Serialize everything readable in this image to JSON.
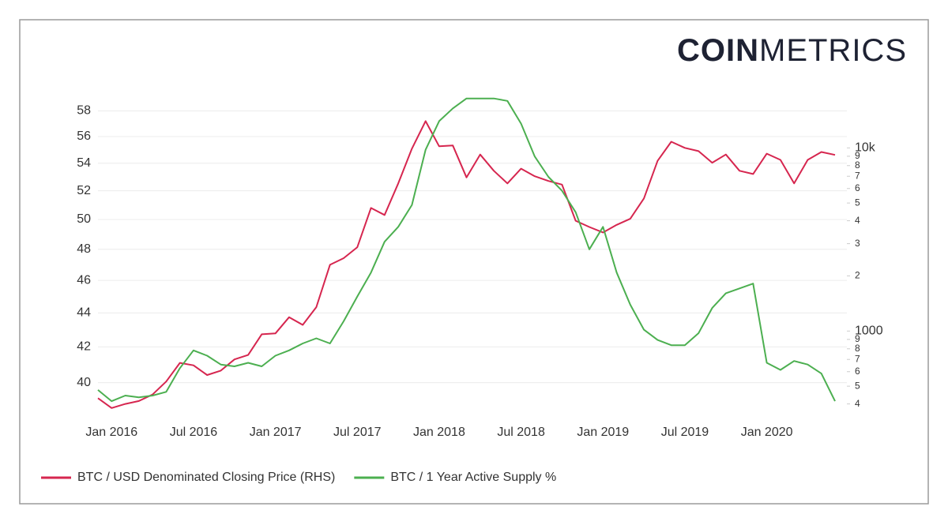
{
  "brand": {
    "bold": "COIN",
    "light": "METRICS"
  },
  "chart_data": {
    "type": "line",
    "x": [
      "2015-12",
      "2016-01",
      "2016-02",
      "2016-03",
      "2016-04",
      "2016-05",
      "2016-06",
      "2016-07",
      "2016-08",
      "2016-09",
      "2016-10",
      "2016-11",
      "2016-12",
      "2017-01",
      "2017-02",
      "2017-03",
      "2017-04",
      "2017-05",
      "2017-06",
      "2017-07",
      "2017-08",
      "2017-09",
      "2017-10",
      "2017-11",
      "2017-12",
      "2018-01",
      "2018-02",
      "2018-03",
      "2018-04",
      "2018-05",
      "2018-06",
      "2018-07",
      "2018-08",
      "2018-09",
      "2018-10",
      "2018-11",
      "2018-12",
      "2019-01",
      "2019-02",
      "2019-03",
      "2019-04",
      "2019-05",
      "2019-06",
      "2019-07",
      "2019-08",
      "2019-09",
      "2019-10",
      "2019-11",
      "2019-12",
      "2020-01",
      "2020-02",
      "2020-03",
      "2020-04",
      "2020-05",
      "2020-06"
    ],
    "series": [
      {
        "name": "BTC / USD Denominated Closing Price (RHS)",
        "color": "#d6264f",
        "axis": "y2",
        "values": [
          430,
          380,
          400,
          415,
          450,
          530,
          670,
          650,
          575,
          608,
          700,
          740,
          960,
          970,
          1190,
          1080,
          1350,
          2300,
          2500,
          2870,
          4700,
          4300,
          6400,
          9900,
          14000,
          10200,
          10300,
          6900,
          9200,
          7500,
          6400,
          7700,
          7000,
          6600,
          6300,
          4000,
          3700,
          3450,
          3800,
          4100,
          5300,
          8500,
          10800,
          10000,
          9600,
          8300,
          9200,
          7500,
          7200,
          9300,
          8600,
          6400,
          8600,
          9500,
          9150
        ]
      },
      {
        "name": "BTC / 1 Year Active Supply %",
        "color": "#4caf50",
        "values": [
          39.6,
          39.0,
          39.3,
          39.2,
          39.3,
          39.5,
          40.8,
          41.8,
          41.5,
          41.0,
          40.9,
          41.1,
          40.9,
          41.5,
          41.8,
          42.2,
          42.5,
          42.2,
          43.5,
          45.0,
          46.5,
          48.5,
          49.5,
          51.0,
          55.0,
          57.2,
          58.2,
          59.0,
          59.0,
          59.0,
          58.8,
          57.0,
          54.5,
          53.0,
          52.0,
          50.5,
          48.0,
          49.5,
          46.5,
          44.5,
          43.0,
          42.4,
          42.1,
          42.1,
          42.8,
          44.3,
          45.2,
          45.5,
          45.8,
          41.1,
          40.7,
          41.2,
          41.0,
          40.5,
          39.0
        ]
      }
    ],
    "xlim": [
      "2015-12",
      "2020-06"
    ],
    "xticks": [
      {
        "value": "2016-01",
        "label": "Jan 2016"
      },
      {
        "value": "2016-07",
        "label": "Jul 2016"
      },
      {
        "value": "2017-01",
        "label": "Jan 2017"
      },
      {
        "value": "2017-07",
        "label": "Jul 2017"
      },
      {
        "value": "2018-01",
        "label": "Jan 2018"
      },
      {
        "value": "2018-07",
        "label": "Jul 2018"
      },
      {
        "value": "2019-01",
        "label": "Jan 2019"
      },
      {
        "value": "2019-07",
        "label": "Jul 2019"
      },
      {
        "value": "2020-01",
        "label": "Jan 2020"
      }
    ],
    "ylim": [
      38.5,
      59.3
    ],
    "ylog": true,
    "yticks": [
      40,
      42,
      44,
      46,
      48,
      50,
      52,
      54,
      56,
      58
    ],
    "y2lim": [
      368,
      19500
    ],
    "y2log": true,
    "y2ticks": [
      {
        "value": 400,
        "label": "4"
      },
      {
        "value": 500,
        "label": "5"
      },
      {
        "value": 600,
        "label": "6"
      },
      {
        "value": 700,
        "label": "7"
      },
      {
        "value": 800,
        "label": "8"
      },
      {
        "value": 900,
        "label": "9"
      },
      1000,
      {
        "value": 2000,
        "label": "2"
      },
      {
        "value": 3000,
        "label": "3"
      },
      {
        "value": 4000,
        "label": "4"
      },
      {
        "value": 5000,
        "label": "5"
      },
      {
        "value": 6000,
        "label": "6"
      },
      {
        "value": 7000,
        "label": "7"
      },
      {
        "value": 8000,
        "label": "8"
      },
      {
        "value": 9000,
        "label": "9"
      },
      {
        "value": 10000,
        "label": "10k"
      }
    ],
    "grid": true,
    "legend": "bottom-left"
  }
}
